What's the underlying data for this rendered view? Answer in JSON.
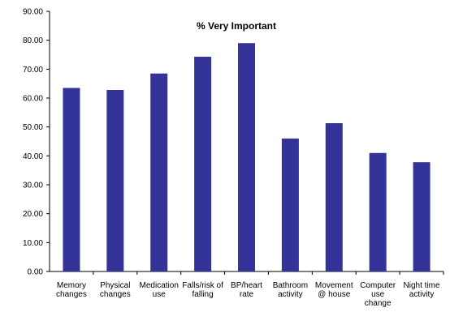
{
  "chart_data": {
    "type": "bar",
    "title": "% Very Important",
    "categories": [
      [
        "Memory",
        "changes"
      ],
      [
        "Physical",
        "changes"
      ],
      [
        "Medication",
        "use"
      ],
      [
        "Falls/risk of",
        "falling"
      ],
      [
        "BP/heart",
        "rate"
      ],
      [
        "Bathroom",
        "activity"
      ],
      [
        "Movement",
        "@ house"
      ],
      [
        "Computer",
        "use",
        "change"
      ],
      [
        "Night time",
        "activity"
      ]
    ],
    "values": [
      63.5,
      62.8,
      68.5,
      74.3,
      79.0,
      46.0,
      51.3,
      41.0,
      37.8
    ],
    "ylim": [
      0,
      90
    ],
    "yticks": [
      "0.00",
      "10.00",
      "20.00",
      "30.00",
      "40.00",
      "50.00",
      "60.00",
      "70.00",
      "80.00",
      "90.00"
    ],
    "xlabel": "",
    "ylabel": "",
    "grid": false,
    "legend": "none",
    "bar_color": "#333399"
  }
}
